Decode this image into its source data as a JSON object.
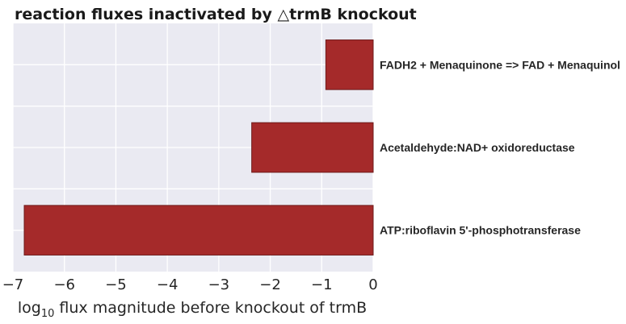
{
  "chart_data": {
    "type": "bar",
    "orientation": "horizontal",
    "title": "reaction fluxes inactivated by △trmB knockout",
    "xlabel_prefix": "log",
    "xlabel_sub": "10",
    "xlabel_suffix": " flux magnitude before knockout of trmB",
    "ylabel": "",
    "categories": [
      "FADH2 + Menaquinone => FAD + Menaquinol",
      "Acetaldehyde:NAD+ oxidoreductase",
      "ATP:riboflavin 5'-phosphotransferase"
    ],
    "values": [
      -0.92,
      -2.36,
      -6.78
    ],
    "xlim": [
      -7,
      0
    ],
    "xticks": [
      -7,
      -6,
      -5,
      -4,
      -3,
      -2,
      -1,
      0
    ],
    "xtick_labels": [
      "−7",
      "−6",
      "−5",
      "−4",
      "−3",
      "−2",
      "−1",
      "0"
    ],
    "grid": true,
    "bar_color": "#a52a2a",
    "bar_edge_color": "#6e1a1a",
    "plot_background": "#eaeaf2",
    "grid_color": "#ffffff"
  }
}
